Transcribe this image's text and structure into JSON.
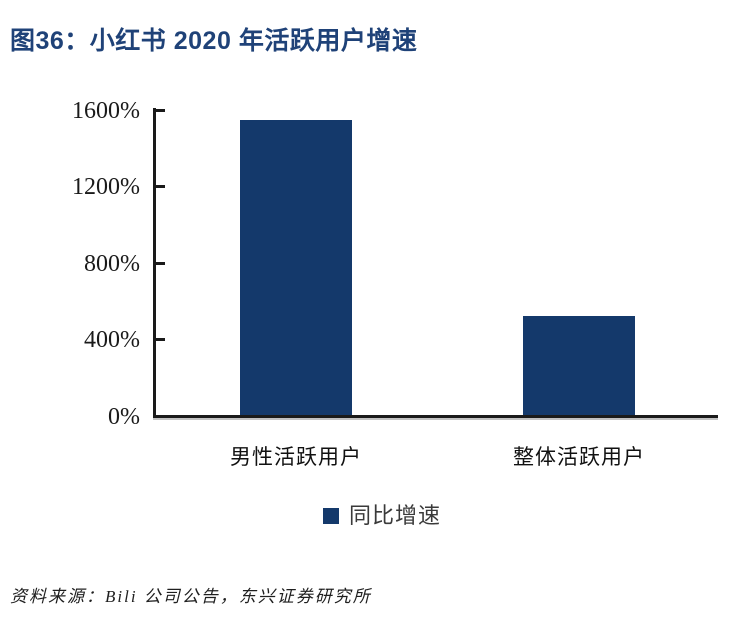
{
  "figure": {
    "title": "图36：小红书 2020 年活跃用户增速",
    "source": "资料来源：Bili 公司公告，东兴证券研究所"
  },
  "chart_data": {
    "type": "bar",
    "title": "图36：小红书 2020 年活跃用户增速",
    "categories": [
      "男性活跃用户",
      "整体活跃用户"
    ],
    "series": [
      {
        "name": "同比增速",
        "values": [
          1550,
          520
        ]
      }
    ],
    "xlabel": "",
    "ylabel": "",
    "ylim": [
      0,
      1600
    ],
    "y_ticks": [
      "1600%",
      "1200%",
      "800%",
      "400%",
      "0%"
    ],
    "y_tick_values": [
      1600,
      1200,
      800,
      400,
      0
    ],
    "legend": [
      "同比增速"
    ],
    "legend_position": "bottom",
    "grid": false,
    "value_unit": "percent"
  },
  "colors": {
    "title_text": "#1f4278",
    "bar_fill": "#14396b",
    "axis_line": "#1a1a1a",
    "tick_label_text": "#1a1a1a",
    "legend_text": "#3a3a3a",
    "background": "#ffffff"
  }
}
